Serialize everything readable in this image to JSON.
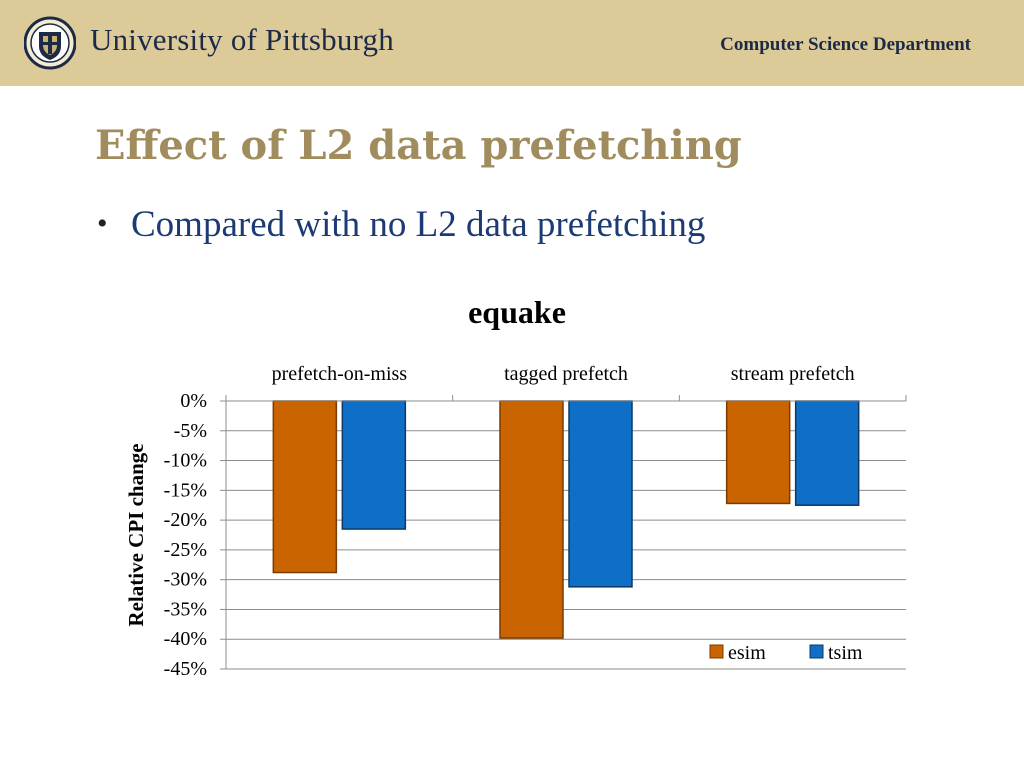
{
  "header": {
    "university": "University of Pittsburgh",
    "department": "Computer Science Department",
    "seal_icon": "university-seal-icon",
    "colors": {
      "band": "#dccb99",
      "navy": "#1c2a47"
    }
  },
  "slide": {
    "title": "Effect of L2 data prefetching",
    "bullets": [
      "Compared with no L2 data prefetching"
    ],
    "colors": {
      "title": "#a08c5c",
      "bullet": "#1c3a73"
    }
  },
  "chart_data": {
    "type": "bar",
    "title": "equake",
    "ylabel": "Relative CPI change",
    "categories": [
      "prefetch-on-miss",
      "tagged prefetch",
      "stream prefetch"
    ],
    "category_labels_position": "top",
    "series": [
      {
        "name": "esim",
        "values": [
          -28.8,
          -39.8,
          -17.2
        ],
        "color": "#c96400"
      },
      {
        "name": "tsim",
        "values": [
          -21.5,
          -31.2,
          -17.5
        ],
        "color": "#0f6fc6"
      }
    ],
    "yticks": [
      "0%",
      "-5%",
      "-10%",
      "-15%",
      "-20%",
      "-25%",
      "-30%",
      "-35%",
      "-40%",
      "-45%"
    ],
    "ylim": [
      -45,
      0
    ],
    "ytick_step": 5,
    "grid": true,
    "legend": "bottom-right"
  }
}
